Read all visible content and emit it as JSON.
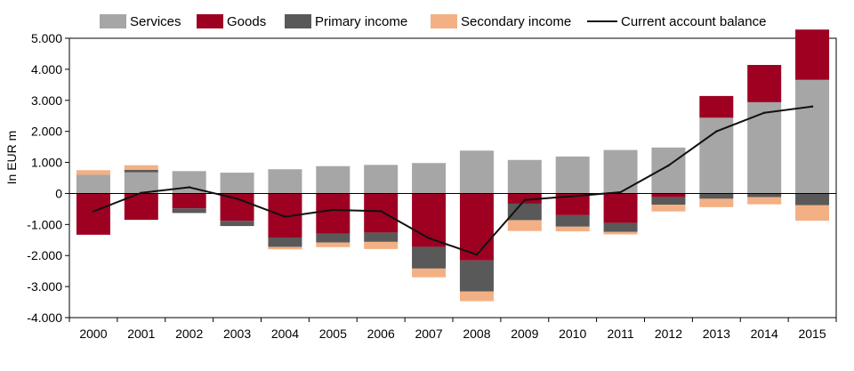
{
  "chart_data": {
    "type": "bar",
    "stacked": true,
    "ylabel": "In EUR m",
    "ylim": [
      -4000,
      5000
    ],
    "yticks": [
      5000,
      4000,
      3000,
      2000,
      1000,
      0,
      -1000,
      -2000,
      -3000,
      -4000
    ],
    "ytick_labels": [
      "5.000",
      "4.000",
      "3.000",
      "2.000",
      "1.000",
      "0",
      "-1.000",
      "-2.000",
      "-3.000",
      "-4.000"
    ],
    "categories": [
      "2000",
      "2001",
      "2002",
      "2003",
      "2004",
      "2005",
      "2006",
      "2007",
      "2008",
      "2009",
      "2010",
      "2011",
      "2012",
      "2013",
      "2014",
      "2015"
    ],
    "grid": false,
    "legend_position": "top",
    "series": [
      {
        "name": "Services",
        "kind": "bar",
        "color": "#a6a6a6",
        "values": [
          600,
          680,
          720,
          670,
          780,
          880,
          920,
          980,
          1380,
          1080,
          1190,
          1400,
          1480,
          2440,
          2940,
          3660
        ]
      },
      {
        "name": "Goods",
        "kind": "bar",
        "color": "#9e0022",
        "values": [
          -1330,
          -850,
          -480,
          -880,
          -1420,
          -1300,
          -1260,
          -1720,
          -2160,
          -330,
          -700,
          -950,
          -120,
          700,
          1200,
          1620
        ]
      },
      {
        "name": "Primary income",
        "kind": "bar",
        "color": "#595959",
        "values": [
          0,
          80,
          -150,
          -170,
          -300,
          -280,
          -300,
          -700,
          -1000,
          -530,
          -370,
          -290,
          -240,
          -170,
          -120,
          -380
        ]
      },
      {
        "name": "Secondary income",
        "kind": "bar",
        "color": "#f3b084",
        "values": [
          150,
          150,
          0,
          0,
          -80,
          -150,
          -230,
          -280,
          -310,
          -350,
          -150,
          -80,
          -220,
          -270,
          -230,
          -500
        ]
      },
      {
        "name": "Current account balance",
        "kind": "line",
        "color": "#111111",
        "values": [
          -580,
          20,
          200,
          -170,
          -750,
          -530,
          -570,
          -1440,
          -1970,
          -210,
          -90,
          40,
          900,
          2000,
          2600,
          2800
        ]
      }
    ]
  }
}
